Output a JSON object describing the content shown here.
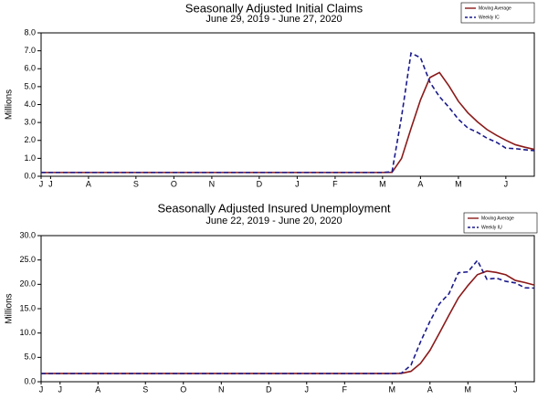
{
  "chart_data": [
    {
      "type": "line",
      "title": "Seasonally Adjusted Initial Claims",
      "subtitle": "June 29, 2019 - June 27, 2020",
      "ylabel": "Millions",
      "categories": [
        "J",
        "J",
        null,
        null,
        null,
        "A",
        null,
        null,
        null,
        null,
        "S",
        null,
        null,
        null,
        "O",
        null,
        null,
        null,
        "N",
        null,
        null,
        null,
        null,
        "D",
        null,
        null,
        null,
        "J",
        null,
        null,
        null,
        "F",
        null,
        null,
        null,
        null,
        "M",
        null,
        null,
        null,
        "A",
        null,
        null,
        null,
        "M",
        null,
        null,
        null,
        null,
        "J",
        null,
        null,
        null
      ],
      "series": [
        {
          "name": "Moving Average",
          "color": "#8b1a1a",
          "style": "solid",
          "values": [
            0.21,
            0.21,
            0.21,
            0.21,
            0.21,
            0.21,
            0.21,
            0.21,
            0.21,
            0.21,
            0.21,
            0.21,
            0.21,
            0.21,
            0.21,
            0.21,
            0.21,
            0.21,
            0.21,
            0.21,
            0.21,
            0.21,
            0.21,
            0.21,
            0.21,
            0.21,
            0.21,
            0.21,
            0.21,
            0.21,
            0.21,
            0.21,
            0.21,
            0.21,
            0.21,
            0.21,
            0.21,
            0.22,
            0.99,
            2.66,
            4.26,
            5.51,
            5.79,
            5.04,
            4.18,
            3.54,
            3.04,
            2.61,
            2.29,
            2.01,
            1.76,
            1.62,
            1.5
          ]
        },
        {
          "name": "Weekly IC",
          "color": "#1a1a8c",
          "style": "dashed",
          "values": [
            0.21,
            0.21,
            0.21,
            0.21,
            0.21,
            0.21,
            0.21,
            0.21,
            0.21,
            0.21,
            0.21,
            0.21,
            0.21,
            0.21,
            0.21,
            0.21,
            0.21,
            0.21,
            0.21,
            0.21,
            0.21,
            0.21,
            0.21,
            0.21,
            0.21,
            0.21,
            0.21,
            0.21,
            0.21,
            0.21,
            0.21,
            0.21,
            0.21,
            0.21,
            0.21,
            0.21,
            0.21,
            0.25,
            3.31,
            6.87,
            6.62,
            5.24,
            4.44,
            3.85,
            3.18,
            2.69,
            2.45,
            2.13,
            1.9,
            1.57,
            1.54,
            1.48,
            1.43
          ]
        }
      ],
      "ylim": [
        0,
        8
      ],
      "yticks": [
        {
          "value": 0,
          "label": "0.0"
        },
        {
          "value": 1,
          "label": "1.0"
        },
        {
          "value": 2,
          "label": "2.0"
        },
        {
          "value": 3,
          "label": "3.0"
        },
        {
          "value": 4,
          "label": "4.0"
        },
        {
          "value": 5,
          "label": "5.0"
        },
        {
          "value": 6,
          "label": "6.0"
        },
        {
          "value": 7,
          "label": "7.0"
        },
        {
          "value": 8,
          "label": "8.0"
        }
      ],
      "legend": "upper right",
      "grid": false
    },
    {
      "type": "line",
      "title": "Seasonally Adjusted Insured Unemployment",
      "subtitle": "June 22, 2019 - June 20, 2020",
      "ylabel": "Millions",
      "categories": [
        "J",
        null,
        "J",
        null,
        null,
        null,
        "A",
        null,
        null,
        null,
        null,
        "S",
        null,
        null,
        null,
        "O",
        null,
        null,
        null,
        "N",
        null,
        null,
        null,
        null,
        "D",
        null,
        null,
        null,
        "J",
        null,
        null,
        null,
        "F",
        null,
        null,
        null,
        null,
        "M",
        null,
        null,
        null,
        "A",
        null,
        null,
        null,
        "M",
        null,
        null,
        null,
        null,
        "J",
        null,
        null
      ],
      "series": [
        {
          "name": "Moving Average",
          "color": "#8b1a1a",
          "style": "solid",
          "values": [
            1.7,
            1.7,
            1.7,
            1.7,
            1.7,
            1.7,
            1.7,
            1.7,
            1.7,
            1.7,
            1.7,
            1.7,
            1.7,
            1.7,
            1.7,
            1.7,
            1.7,
            1.7,
            1.7,
            1.7,
            1.7,
            1.7,
            1.7,
            1.7,
            1.7,
            1.7,
            1.7,
            1.7,
            1.7,
            1.7,
            1.7,
            1.7,
            1.7,
            1.7,
            1.7,
            1.7,
            1.7,
            1.7,
            1.72,
            2.14,
            3.76,
            6.44,
            10.0,
            13.66,
            17.22,
            19.75,
            21.98,
            22.72,
            22.44,
            21.96,
            20.8,
            20.37,
            19.85
          ]
        },
        {
          "name": "Weekly IU",
          "color": "#1a1a8c",
          "style": "dashed",
          "values": [
            1.69,
            1.69,
            1.69,
            1.69,
            1.69,
            1.69,
            1.69,
            1.69,
            1.69,
            1.69,
            1.69,
            1.69,
            1.69,
            1.69,
            1.69,
            1.69,
            1.69,
            1.69,
            1.69,
            1.69,
            1.69,
            1.69,
            1.69,
            1.69,
            1.69,
            1.69,
            1.69,
            1.69,
            1.69,
            1.69,
            1.69,
            1.69,
            1.69,
            1.69,
            1.69,
            1.69,
            1.69,
            1.69,
            1.78,
            3.41,
            8.17,
            12.41,
            16.02,
            18.06,
            22.38,
            22.55,
            24.91,
            21.05,
            21.27,
            20.61,
            20.29,
            19.29,
            19.23
          ]
        }
      ],
      "ylim": [
        0,
        30
      ],
      "yticks": [
        {
          "value": 0,
          "label": "0.0"
        },
        {
          "value": 5,
          "label": "5.0"
        },
        {
          "value": 10,
          "label": "10.0"
        },
        {
          "value": 15,
          "label": "15.0"
        },
        {
          "value": 20,
          "label": "20.0"
        },
        {
          "value": 25,
          "label": "25.0"
        },
        {
          "value": 30,
          "label": "30.0"
        }
      ],
      "legend": "upper right",
      "grid": false
    }
  ]
}
